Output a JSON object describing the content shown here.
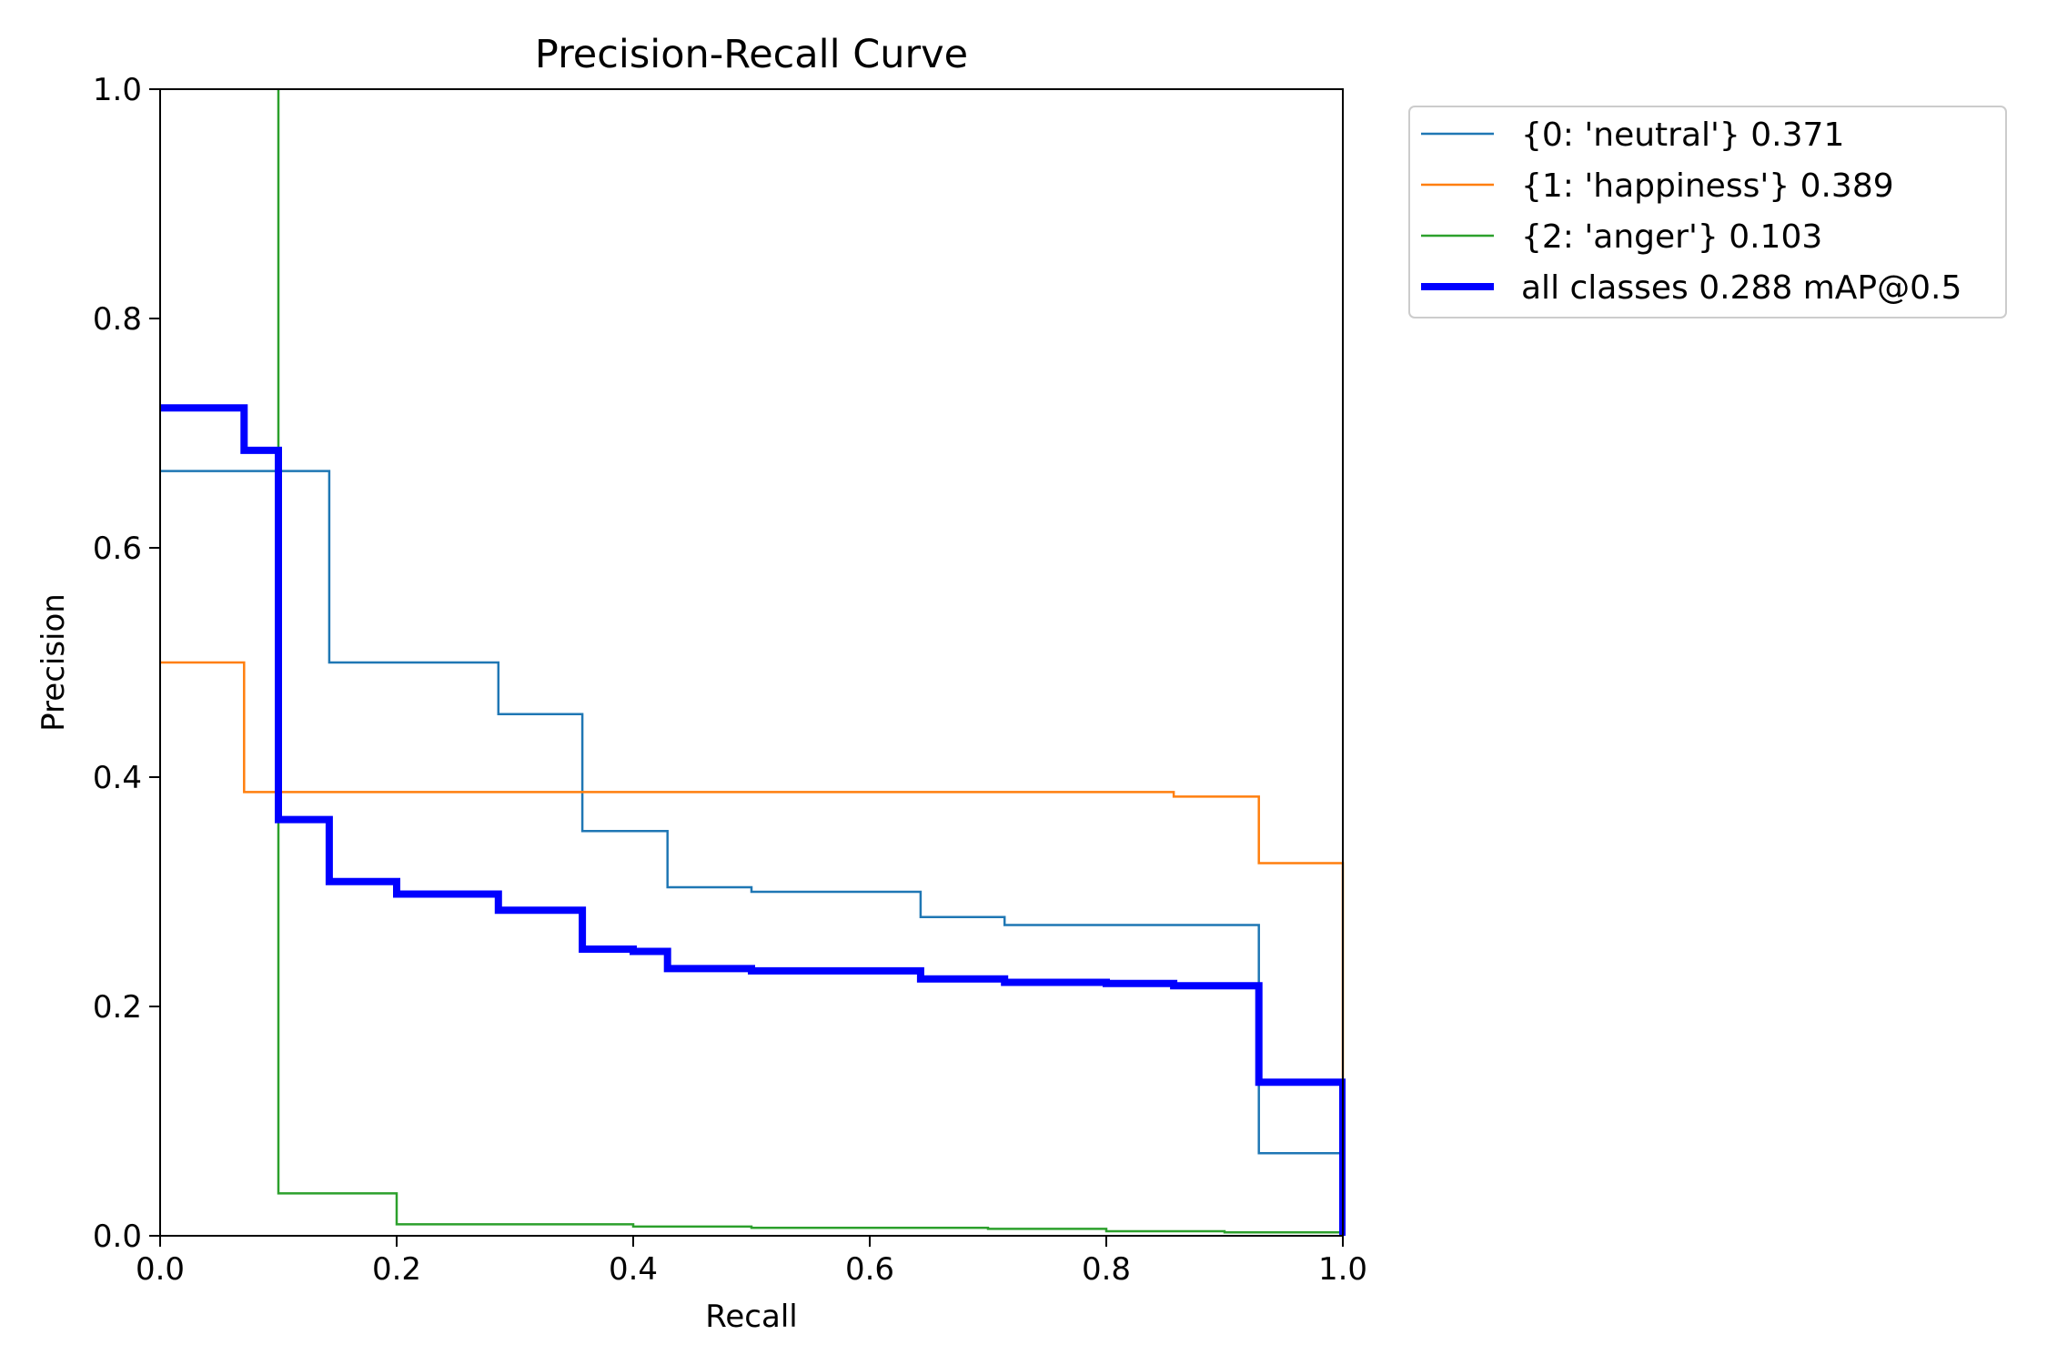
{
  "chart_data": {
    "type": "line",
    "title": "Precision-Recall Curve",
    "xlabel": "Recall",
    "ylabel": "Precision",
    "xlim": [
      0.0,
      1.0
    ],
    "ylim": [
      0.0,
      1.0
    ],
    "x_ticks": [
      "0.0",
      "0.2",
      "0.4",
      "0.6",
      "0.8",
      "1.0"
    ],
    "y_ticks": [
      "0.0",
      "0.2",
      "0.4",
      "0.6",
      "0.8",
      "1.0"
    ],
    "grid": false,
    "legend_position": "outside-upper-right",
    "series": [
      {
        "name": "{0: 'neutral'} 0.371",
        "color": "#1f77b4",
        "line_weight": "thin",
        "points": [
          [
            0.0,
            0.667
          ],
          [
            0.143,
            0.667
          ],
          [
            0.143,
            0.5
          ],
          [
            0.286,
            0.5
          ],
          [
            0.286,
            0.455
          ],
          [
            0.357,
            0.455
          ],
          [
            0.357,
            0.353
          ],
          [
            0.429,
            0.353
          ],
          [
            0.429,
            0.304
          ],
          [
            0.5,
            0.304
          ],
          [
            0.5,
            0.3
          ],
          [
            0.643,
            0.3
          ],
          [
            0.643,
            0.278
          ],
          [
            0.714,
            0.278
          ],
          [
            0.714,
            0.271
          ],
          [
            0.929,
            0.271
          ],
          [
            0.929,
            0.072
          ],
          [
            1.0,
            0.072
          ],
          [
            1.0,
            0.0
          ]
        ]
      },
      {
        "name": "{1: 'happiness'} 0.389",
        "color": "#ff7f0e",
        "line_weight": "thin",
        "points": [
          [
            0.0,
            0.5
          ],
          [
            0.071,
            0.5
          ],
          [
            0.071,
            0.387
          ],
          [
            0.857,
            0.387
          ],
          [
            0.857,
            0.383
          ],
          [
            0.929,
            0.383
          ],
          [
            0.929,
            0.325
          ],
          [
            1.0,
            0.325
          ],
          [
            1.0,
            0.0
          ]
        ]
      },
      {
        "name": "{2: 'anger'} 0.103",
        "color": "#2ca02c",
        "line_weight": "thin",
        "points": [
          [
            0.1,
            1.0
          ],
          [
            0.1,
            0.037
          ],
          [
            0.2,
            0.037
          ],
          [
            0.2,
            0.01
          ],
          [
            0.4,
            0.01
          ],
          [
            0.4,
            0.008
          ],
          [
            0.5,
            0.008
          ],
          [
            0.5,
            0.007
          ],
          [
            0.7,
            0.007
          ],
          [
            0.7,
            0.006
          ],
          [
            0.8,
            0.006
          ],
          [
            0.8,
            0.004
          ],
          [
            0.9,
            0.004
          ],
          [
            0.9,
            0.003
          ],
          [
            1.0,
            0.003
          ],
          [
            1.0,
            0.0
          ]
        ]
      },
      {
        "name": "all classes 0.288 mAP@0.5",
        "color": "#0000ff",
        "line_weight": "thick",
        "points": [
          [
            0.0,
            0.722
          ],
          [
            0.071,
            0.722
          ],
          [
            0.071,
            0.685
          ],
          [
            0.1,
            0.685
          ],
          [
            0.1,
            0.363
          ],
          [
            0.143,
            0.363
          ],
          [
            0.143,
            0.309
          ],
          [
            0.2,
            0.309
          ],
          [
            0.2,
            0.298
          ],
          [
            0.286,
            0.298
          ],
          [
            0.286,
            0.284
          ],
          [
            0.357,
            0.284
          ],
          [
            0.357,
            0.25
          ],
          [
            0.4,
            0.25
          ],
          [
            0.4,
            0.248
          ],
          [
            0.429,
            0.248
          ],
          [
            0.429,
            0.233
          ],
          [
            0.5,
            0.233
          ],
          [
            0.5,
            0.231
          ],
          [
            0.643,
            0.231
          ],
          [
            0.643,
            0.224
          ],
          [
            0.714,
            0.224
          ],
          [
            0.714,
            0.221
          ],
          [
            0.8,
            0.221
          ],
          [
            0.8,
            0.22
          ],
          [
            0.857,
            0.22
          ],
          [
            0.857,
            0.218
          ],
          [
            0.929,
            0.218
          ],
          [
            0.929,
            0.134
          ],
          [
            1.0,
            0.134
          ],
          [
            1.0,
            0.0
          ]
        ]
      }
    ]
  }
}
